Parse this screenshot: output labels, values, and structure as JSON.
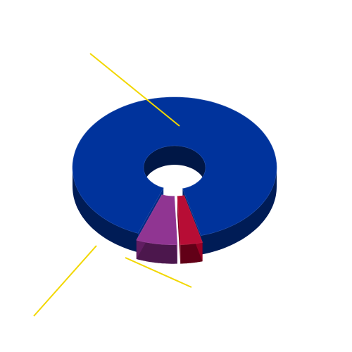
{
  "chart_data": {
    "type": "pie",
    "style": "3d-donut",
    "title": "",
    "legend": "none",
    "data_labels": "none",
    "slices": [
      {
        "value": 90,
        "color": "#00339c",
        "exploded": false
      },
      {
        "value": 3.5,
        "color": "#b3002a",
        "exploded": true
      },
      {
        "value": 6.5,
        "color": "#8a2a8c",
        "exploded": true
      }
    ],
    "leader_line_color": "#f2d700"
  }
}
